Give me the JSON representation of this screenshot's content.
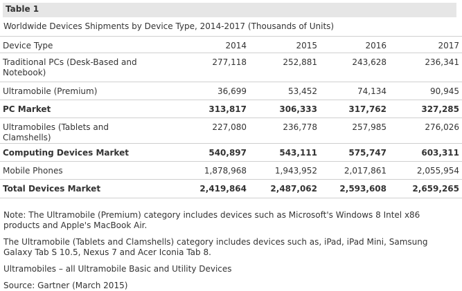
{
  "table_label": "Table 1",
  "caption": "Worldwide Devices Shipments by Device Type, 2014-2017 (Thousands of Units)",
  "columns": [
    "Device Type",
    "2014",
    "2015",
    "2016",
    "2017"
  ],
  "rows": [
    {
      "label": "Traditional PCs (Desk-Based and Notebook)",
      "values": [
        "277,118",
        "252,881",
        "243,628",
        "236,341"
      ],
      "bold": false
    },
    {
      "label": "Ultramobile (Premium)",
      "values": [
        "36,699",
        "53,452",
        "74,134",
        "90,945"
      ],
      "bold": false
    },
    {
      "label": "PC Market",
      "values": [
        "313,817",
        "306,333",
        "317,762",
        "327,285"
      ],
      "bold": true
    },
    {
      "label": "Ultramobiles (Tablets and Clamshells)",
      "values": [
        "227,080",
        "236,778",
        "257,985",
        "276,026"
      ],
      "bold": false
    },
    {
      "label": "Computing Devices Market",
      "values": [
        "540,897",
        "543,111",
        "575,747",
        "603,311"
      ],
      "bold": true
    },
    {
      "label": "Mobile Phones",
      "values": [
        "1,878,968",
        "1,943,952",
        "2,017,861",
        "2,055,954"
      ],
      "bold": false
    },
    {
      "label": "Total Devices Market",
      "values": [
        "2,419,864",
        "2,487,062",
        "2,593,608",
        "2,659,265"
      ],
      "bold": true
    }
  ],
  "notes": [
    "Note: The Ultramobile (Premium) category includes devices such as Microsoft's Windows 8 Intel x86 products and Apple's MacBook Air.",
    "The Ultramobile (Tablets and Clamshells) category includes devices such as, iPad, iPad Mini, Samsung Galaxy Tab S 10.5, Nexus 7 and Acer Iconia Tab 8.",
    "Ultramobiles – all Ultramobile Basic and Utility Devices",
    "Source: Gartner (March 2015)"
  ],
  "colors": {
    "label_bg": "#e6e6e6",
    "border": "#cfcfcf",
    "text": "#333333"
  }
}
